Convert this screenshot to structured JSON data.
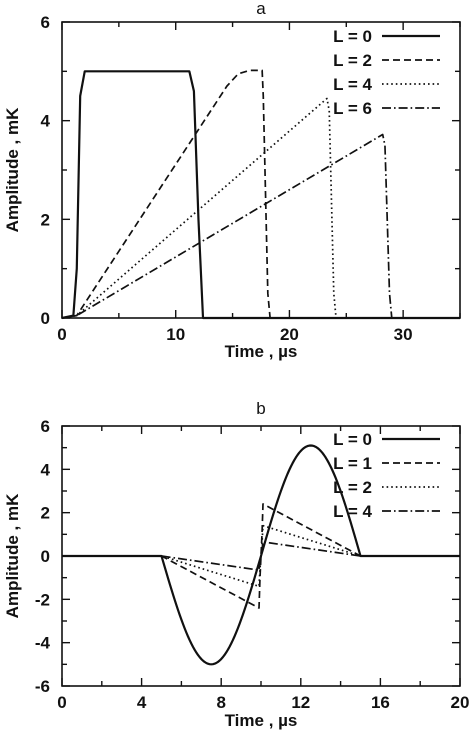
{
  "chart_data": [
    {
      "type": "line",
      "title": "a",
      "xlabel": "Time , µs",
      "ylabel": "Amplitude , mK",
      "xlim": [
        0,
        35
      ],
      "ylim": [
        0,
        6
      ],
      "xticks": [
        0,
        10,
        20,
        30
      ],
      "yticks": [
        0,
        2,
        4,
        6
      ],
      "grid": false,
      "legend_position": "top-right",
      "series": [
        {
          "name": "L = 0",
          "style": "solid",
          "x": [
            0,
            1.0,
            1.3,
            1.6,
            2.0,
            11.2,
            11.6,
            12.0,
            12.4,
            35
          ],
          "y": [
            0,
            0.05,
            1.0,
            4.5,
            5.0,
            5.0,
            4.6,
            2.0,
            0,
            0
          ]
        },
        {
          "name": "L = 2",
          "style": "dashed",
          "x": [
            0,
            1.3,
            14.5,
            15.5,
            16.5,
            17.6,
            17.7,
            18.1,
            18.3,
            35
          ],
          "y": [
            0,
            0.05,
            4.7,
            4.95,
            5.02,
            5.02,
            4.5,
            0.5,
            0,
            0
          ]
        },
        {
          "name": "L = 4",
          "style": "dotted",
          "x": [
            0,
            1.3,
            23.3,
            23.5,
            23.9,
            24.1,
            35
          ],
          "y": [
            0,
            0.05,
            4.45,
            4.2,
            0.5,
            0,
            0
          ]
        },
        {
          "name": "L = 6",
          "style": "dashdot",
          "x": [
            0,
            1.3,
            28.2,
            28.4,
            28.8,
            29.0,
            35
          ],
          "y": [
            0,
            0.05,
            3.72,
            3.5,
            0.5,
            0,
            0
          ]
        }
      ]
    },
    {
      "type": "line",
      "title": "b",
      "xlabel": "Time , µs",
      "ylabel": "Amplitude , mK",
      "xlim": [
        0,
        20
      ],
      "ylim": [
        -6,
        6
      ],
      "xticks": [
        0,
        4,
        8,
        12,
        16,
        20
      ],
      "yticks": [
        -6,
        -4,
        -2,
        0,
        2,
        4,
        6
      ],
      "grid": false,
      "legend_position": "top-right",
      "series": [
        {
          "name": "L = 0",
          "style": "solid",
          "curve": "sine",
          "x": [
            0,
            5,
            6,
            7.5,
            9,
            10,
            11,
            12.4,
            14,
            15,
            20
          ],
          "y": [
            0,
            0,
            -2.5,
            -5.0,
            -2.6,
            0,
            2.6,
            5.1,
            2.6,
            0,
            0
          ]
        },
        {
          "name": "L = 1",
          "style": "dashed",
          "x": [
            0,
            5,
            9.9,
            9.95,
            10.05,
            10.1,
            15,
            20
          ],
          "y": [
            0,
            0,
            -2.4,
            -1.0,
            1.0,
            2.4,
            0,
            0
          ]
        },
        {
          "name": "L = 2",
          "style": "dotted",
          "x": [
            0,
            5,
            9.9,
            9.95,
            10.05,
            10.1,
            15,
            20
          ],
          "y": [
            0,
            0,
            -1.4,
            -0.6,
            0.6,
            1.4,
            0,
            0
          ]
        },
        {
          "name": "L = 4",
          "style": "dashdot",
          "x": [
            0,
            5,
            9.9,
            9.95,
            10.05,
            10.1,
            15,
            20
          ],
          "y": [
            0,
            0,
            -0.65,
            -0.3,
            0.3,
            0.65,
            0,
            0
          ]
        }
      ]
    }
  ]
}
